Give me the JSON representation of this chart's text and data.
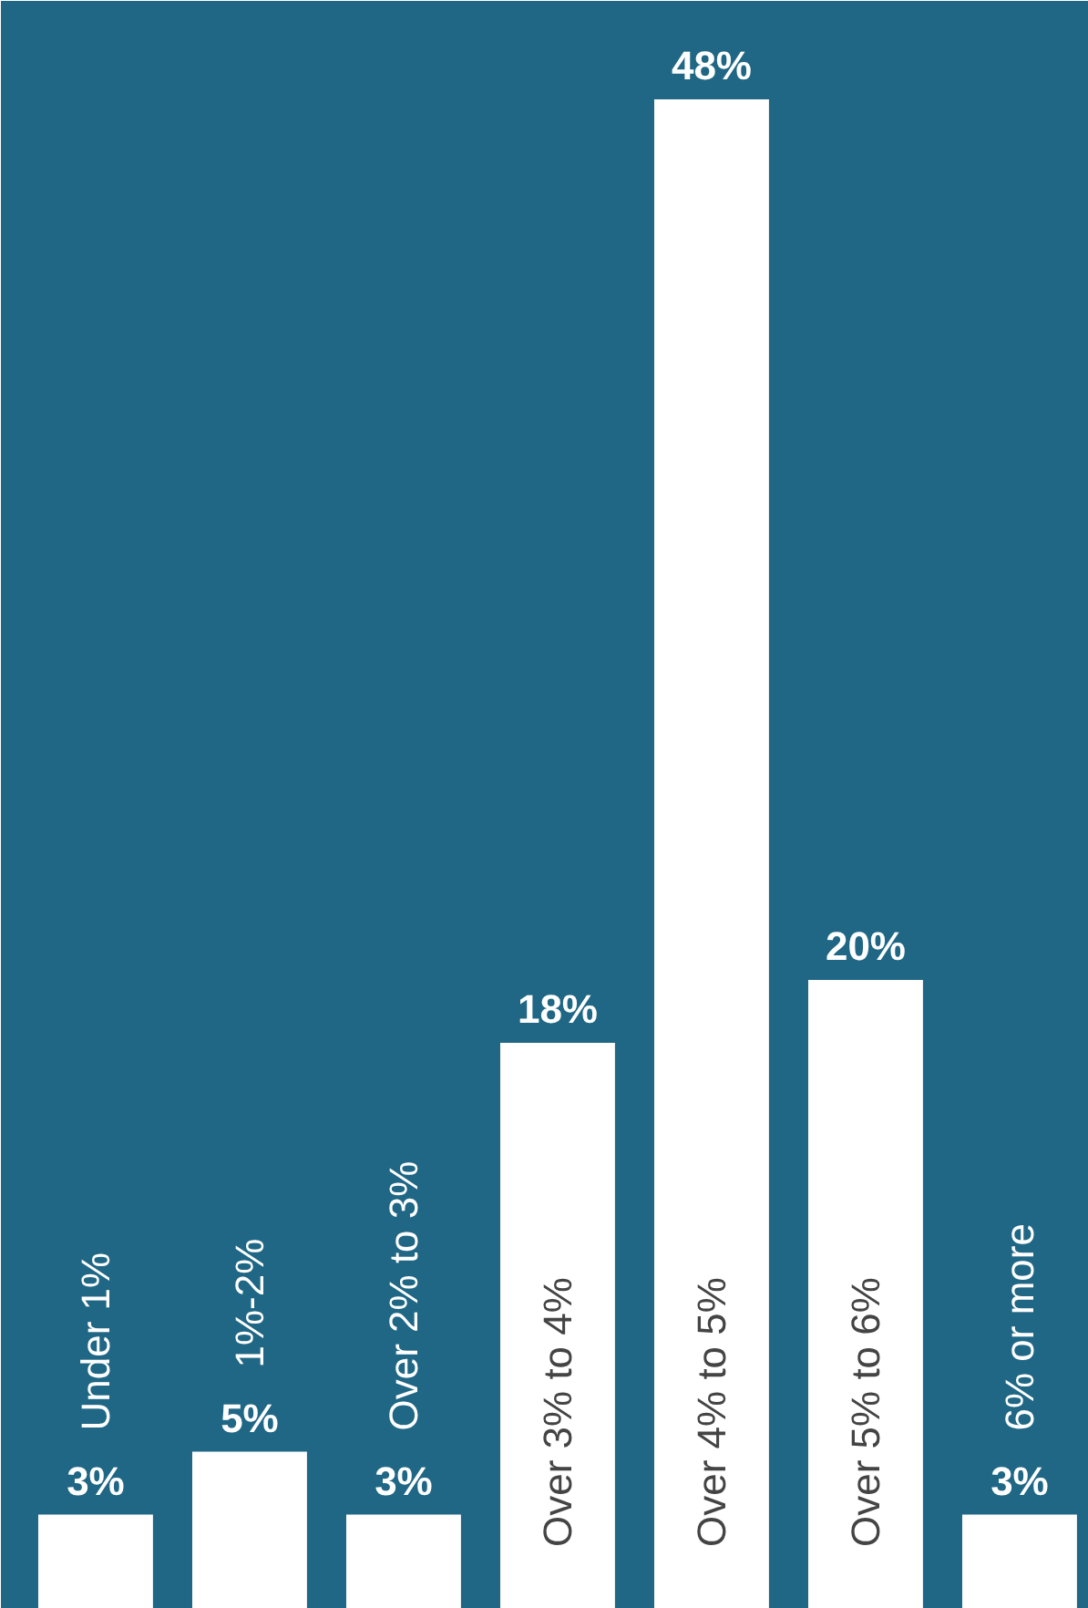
{
  "chart_data": {
    "type": "bar",
    "categories": [
      "Under 1%",
      "1%-2%",
      "Over 2% to 3%",
      "Over 3% to 4%",
      "Over 4% to 5%",
      "Over 5% to 6%",
      "6% or more"
    ],
    "values": [
      3,
      5,
      3,
      18,
      48,
      20,
      3
    ],
    "color": "#ffffff",
    "data_labels": true,
    "value_labels": [
      "3%",
      "5%",
      "3%",
      "18%",
      "48%",
      "20%",
      "3%"
    ],
    "grid": false
  }
}
